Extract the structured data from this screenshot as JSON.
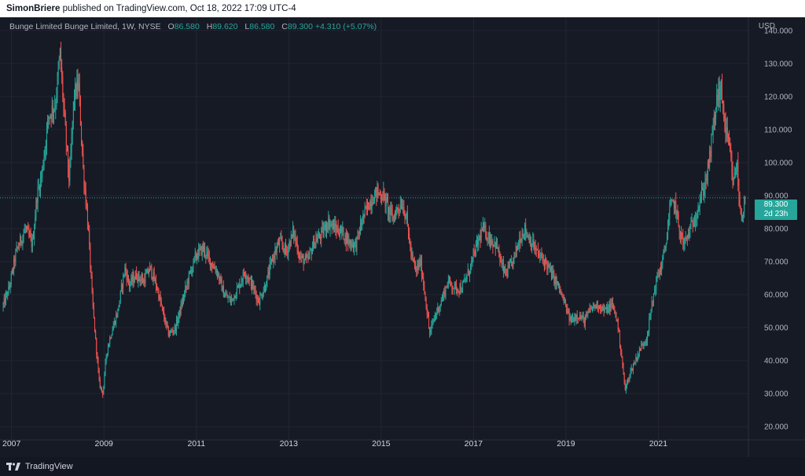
{
  "header": {
    "author": "SimonBriere",
    "published_text": "published on TradingView.com, Oct 18, 2022 17:09 UTC-4"
  },
  "legend": {
    "symbol": "Bunge Limited Bunge Limited, 1W, NYSE",
    "open_label": "O",
    "open": "86.580",
    "high_label": "H",
    "high": "89.620",
    "low_label": "L",
    "low": "86.580",
    "close_label": "C",
    "close": "89.300",
    "change": "+4.310 (+5.07%)"
  },
  "currency": "USD",
  "price_tag": {
    "price": "89.300",
    "countdown": "2d 23h"
  },
  "footer": {
    "brand": "TradingView",
    "logo_icon": "tradingview-logo-icon"
  },
  "colors": {
    "up": "#26a69a",
    "down": "#ef5350",
    "background": "#161a25",
    "price_line": "#26a69a"
  },
  "chart_data": {
    "type": "candlestick",
    "title": "Bunge Limited Bunge Limited, 1W, NYSE",
    "ylabel": "USD",
    "ylim": [
      16,
      144
    ],
    "xlim": [
      2006.75,
      2022.95
    ],
    "grid": true,
    "y_ticks": [
      "140.000",
      "130.000",
      "120.000",
      "110.000",
      "100.000",
      "90.000",
      "80.000",
      "70.000",
      "60.000",
      "50.000",
      "40.000",
      "30.000",
      "20.000"
    ],
    "x_ticks": [
      "2007",
      "2009",
      "2011",
      "2013",
      "2015",
      "2017",
      "2019",
      "2021"
    ],
    "last_close": 89.3,
    "price_path": [
      [
        2006.8,
        56
      ],
      [
        2006.95,
        62
      ],
      [
        2007.1,
        73
      ],
      [
        2007.3,
        80
      ],
      [
        2007.45,
        75
      ],
      [
        2007.55,
        90
      ],
      [
        2007.65,
        96
      ],
      [
        2007.8,
        114
      ],
      [
        2007.95,
        118
      ],
      [
        2008.05,
        133
      ],
      [
        2008.15,
        112
      ],
      [
        2008.25,
        94
      ],
      [
        2008.35,
        120
      ],
      [
        2008.45,
        124
      ],
      [
        2008.55,
        98
      ],
      [
        2008.65,
        82
      ],
      [
        2008.75,
        58
      ],
      [
        2008.82,
        46
      ],
      [
        2008.9,
        33
      ],
      [
        2008.98,
        30
      ],
      [
        2009.05,
        42
      ],
      [
        2009.15,
        48
      ],
      [
        2009.3,
        55
      ],
      [
        2009.45,
        68
      ],
      [
        2009.55,
        63
      ],
      [
        2009.7,
        66
      ],
      [
        2009.85,
        64
      ],
      [
        2010.0,
        68
      ],
      [
        2010.15,
        62
      ],
      [
        2010.3,
        53
      ],
      [
        2010.4,
        48
      ],
      [
        2010.55,
        50
      ],
      [
        2010.7,
        58
      ],
      [
        2010.85,
        66
      ],
      [
        2011.0,
        72
      ],
      [
        2011.15,
        74
      ],
      [
        2011.3,
        70
      ],
      [
        2011.45,
        67
      ],
      [
        2011.6,
        60
      ],
      [
        2011.75,
        58
      ],
      [
        2011.9,
        62
      ],
      [
        2012.05,
        67
      ],
      [
        2012.2,
        63
      ],
      [
        2012.35,
        58
      ],
      [
        2012.5,
        63
      ],
      [
        2012.65,
        71
      ],
      [
        2012.8,
        76
      ],
      [
        2012.95,
        73
      ],
      [
        2013.1,
        79
      ],
      [
        2013.25,
        71
      ],
      [
        2013.4,
        70
      ],
      [
        2013.55,
        76
      ],
      [
        2013.7,
        78
      ],
      [
        2013.85,
        82
      ],
      [
        2014.0,
        80
      ],
      [
        2014.15,
        79
      ],
      [
        2014.3,
        76
      ],
      [
        2014.45,
        75
      ],
      [
        2014.6,
        83
      ],
      [
        2014.75,
        88
      ],
      [
        2014.9,
        91
      ],
      [
        2015.05,
        90
      ],
      [
        2015.15,
        86
      ],
      [
        2015.25,
        83
      ],
      [
        2015.35,
        86
      ],
      [
        2015.45,
        88
      ],
      [
        2015.55,
        83
      ],
      [
        2015.65,
        72
      ],
      [
        2015.75,
        67
      ],
      [
        2015.85,
        70
      ],
      [
        2015.95,
        60
      ],
      [
        2016.05,
        48
      ],
      [
        2016.15,
        53
      ],
      [
        2016.3,
        58
      ],
      [
        2016.45,
        64
      ],
      [
        2016.6,
        62
      ],
      [
        2016.75,
        62
      ],
      [
        2016.9,
        67
      ],
      [
        2017.05,
        74
      ],
      [
        2017.2,
        80
      ],
      [
        2017.35,
        77
      ],
      [
        2017.5,
        75
      ],
      [
        2017.6,
        69
      ],
      [
        2017.7,
        66
      ],
      [
        2017.85,
        70
      ],
      [
        2018.0,
        77
      ],
      [
        2018.1,
        80
      ],
      [
        2018.25,
        76
      ],
      [
        2018.4,
        72
      ],
      [
        2018.55,
        70
      ],
      [
        2018.7,
        66
      ],
      [
        2018.85,
        62
      ],
      [
        2019.0,
        56
      ],
      [
        2019.1,
        52
      ],
      [
        2019.25,
        54
      ],
      [
        2019.4,
        52
      ],
      [
        2019.55,
        56
      ],
      [
        2019.7,
        57
      ],
      [
        2019.85,
        55
      ],
      [
        2020.0,
        57
      ],
      [
        2020.1,
        53
      ],
      [
        2020.2,
        42
      ],
      [
        2020.28,
        31
      ],
      [
        2020.38,
        36
      ],
      [
        2020.5,
        40
      ],
      [
        2020.62,
        44
      ],
      [
        2020.75,
        47
      ],
      [
        2020.85,
        56
      ],
      [
        2020.95,
        64
      ],
      [
        2021.05,
        68
      ],
      [
        2021.15,
        74
      ],
      [
        2021.25,
        86
      ],
      [
        2021.35,
        88
      ],
      [
        2021.45,
        80
      ],
      [
        2021.55,
        75
      ],
      [
        2021.7,
        80
      ],
      [
        2021.85,
        86
      ],
      [
        2022.0,
        93
      ],
      [
        2022.1,
        100
      ],
      [
        2022.2,
        112
      ],
      [
        2022.3,
        122
      ],
      [
        2022.38,
        120
      ],
      [
        2022.45,
        110
      ],
      [
        2022.55,
        103
      ],
      [
        2022.62,
        93
      ],
      [
        2022.7,
        100
      ],
      [
        2022.76,
        86
      ],
      [
        2022.82,
        84
      ],
      [
        2022.88,
        89.3
      ]
    ]
  }
}
